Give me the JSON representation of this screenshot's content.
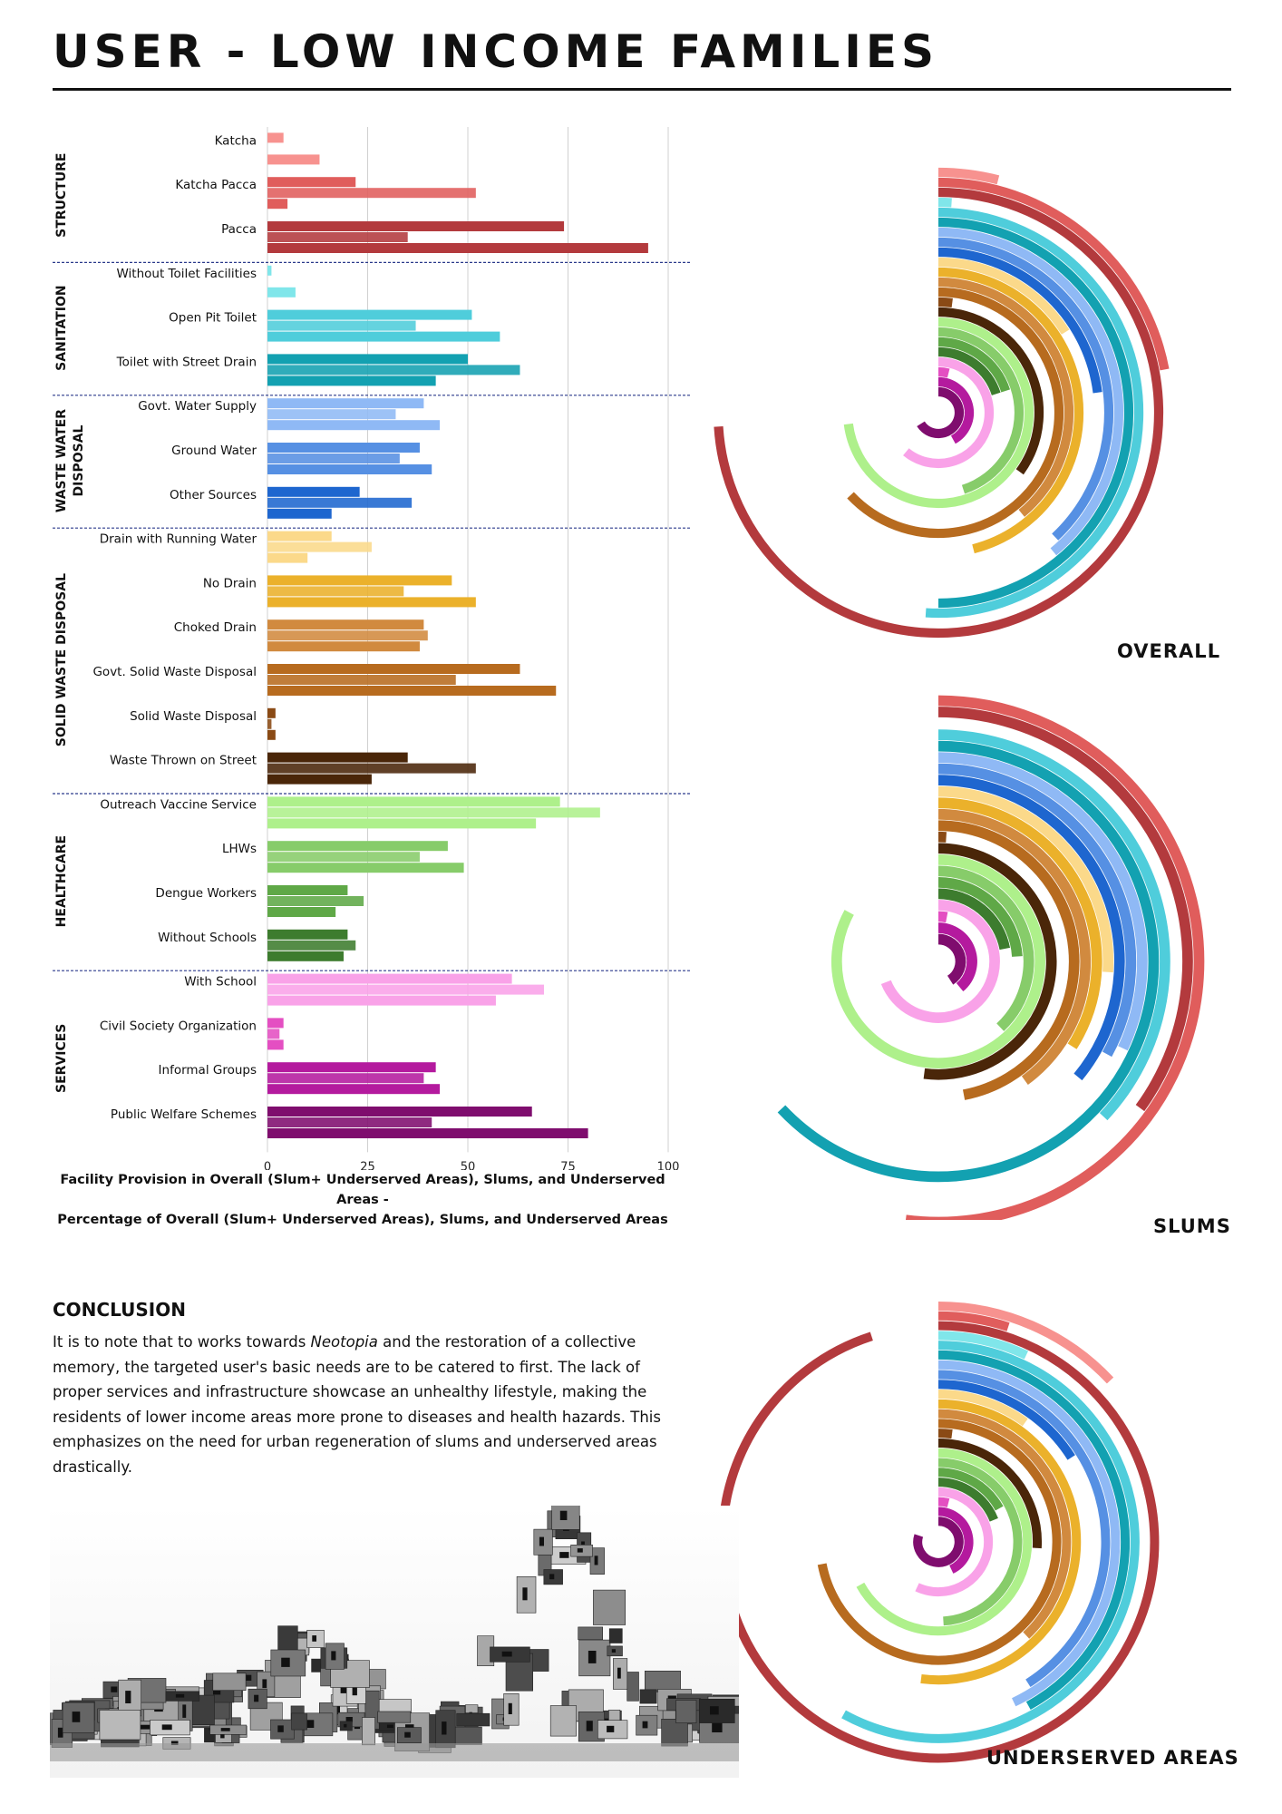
{
  "page": {
    "title": "USER - LOW INCOME FAMILIES"
  },
  "chart_data": [
    {
      "type": "bar",
      "orientation": "horizontal",
      "caption_line1": "Facility Provision in Overall (Slum+ Underserved Areas), Slums, and Underserved Areas -",
      "caption_line2": "Percentage of Overall (Slum+ Underserved Areas), Slums, and Underserved Areas",
      "xlim": [
        0,
        100
      ],
      "xticks": [
        "0",
        "25",
        "50",
        "75",
        "100"
      ],
      "grid": true,
      "bar_order": [
        "Overall",
        "Slums",
        "Underserved Areas"
      ],
      "groups": [
        {
          "name": "STRUCTURE",
          "items": [
            {
              "label": "Katcha",
              "values": [
                4,
                0,
                13
              ],
              "color": "#f7928f"
            },
            {
              "label": "Katcha Pacca",
              "values": [
                22,
                52,
                5
              ],
              "color": "#e05d5c"
            },
            {
              "label": "Pacca",
              "values": [
                74,
                35,
                95
              ],
              "color": "#b33a3d"
            }
          ]
        },
        {
          "name": "SANITATION",
          "items": [
            {
              "label": "Without Toilet Facilities",
              "values": [
                1,
                0,
                7
              ],
              "color": "#80e6ea"
            },
            {
              "label": "Open Pit Toilet",
              "values": [
                51,
                37,
                58
              ],
              "color": "#4fcddb"
            },
            {
              "label": "Toilet with Street Drain",
              "values": [
                50,
                63,
                42
              ],
              "color": "#13a1b1"
            }
          ]
        },
        {
          "name": "WASTE WATER DISPOSAL",
          "items": [
            {
              "label": "Govt. Water Supply",
              "values": [
                39,
                32,
                43
              ],
              "color": "#8fb9f5"
            },
            {
              "label": "Ground Water",
              "values": [
                38,
                33,
                41
              ],
              "color": "#5690e3"
            },
            {
              "label": "Other Sources",
              "values": [
                23,
                36,
                16
              ],
              "color": "#1e66cf"
            }
          ]
        },
        {
          "name": "SOLID WASTE DISPOSAL",
          "items": [
            {
              "label": "Drain with Running Water",
              "values": [
                16,
                26,
                10
              ],
              "color": "#fbd98a"
            },
            {
              "label": "No Drain",
              "values": [
                46,
                34,
                52
              ],
              "color": "#ebb12b"
            },
            {
              "label": "Choked Drain",
              "values": [
                39,
                40,
                38
              ],
              "color": "#d18a3f"
            },
            {
              "label": "Govt. Solid Waste Disposal",
              "values": [
                63,
                47,
                72
              ],
              "color": "#b76b1f"
            },
            {
              "label": "Solid Waste Disposal",
              "values": [
                2,
                1,
                2
              ],
              "color": "#8a4a15"
            },
            {
              "label": "Waste Thrown on Street",
              "values": [
                35,
                52,
                26
              ],
              "color": "#4a2609"
            }
          ]
        },
        {
          "name": "HEALTHCARE",
          "items": [
            {
              "label": "Outreach Vaccine Service",
              "values": [
                73,
                83,
                67
              ],
              "color": "#aef08b"
            },
            {
              "label": "LHWs",
              "values": [
                45,
                38,
                49
              ],
              "color": "#87cc6a"
            },
            {
              "label": "Dengue Workers",
              "values": [
                20,
                24,
                17
              ],
              "color": "#5fa847"
            },
            {
              "label": "Without Schools",
              "values": [
                20,
                22,
                19
              ],
              "color": "#3d7c2e"
            }
          ]
        },
        {
          "name": "SERVICES",
          "items": [
            {
              "label": "With School",
              "values": [
                61,
                69,
                57
              ],
              "color": "#f9a2e8"
            },
            {
              "label": "Civil Society Organization",
              "values": [
                4,
                3,
                4
              ],
              "color": "#e44fc2"
            },
            {
              "label": "Informal Groups",
              "values": [
                42,
                39,
                43
              ],
              "color": "#b41a9e"
            },
            {
              "label": "Public Welfare Schemes",
              "values": [
                66,
                41,
                80
              ],
              "color": "#7f0d6e"
            }
          ]
        }
      ]
    },
    {
      "type": "radial-bar",
      "title": "OVERALL",
      "series_index": 0
    },
    {
      "type": "radial-bar",
      "title": "SLUMS",
      "series_index": 1
    },
    {
      "type": "radial-bar",
      "title": "UNDERSERVED AREAS",
      "series_index": 2
    }
  ],
  "conclusion": {
    "heading": "CONCLUSION",
    "text_before": "It is to note that to works towards ",
    "emphasis": "Neotopia",
    "text_after": " and the restoration of a collective memory, the targeted user's basic needs are to be catered to first. The lack of proper services and infrastructure showcase an unhealthy lifestyle, making the residents of lower income areas more prone to diseases and health hazards. This emphasizes on the need for urban regeneration of slums and underserved areas drastically."
  }
}
